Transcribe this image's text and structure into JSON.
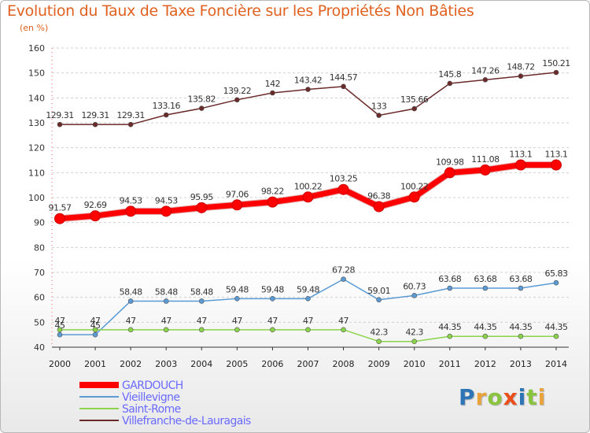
{
  "chart_data": {
    "type": "line",
    "title": "Evolution du Taux de Taxe Foncière sur les Propriétés Non Bâties",
    "ylabel": "(en %)",
    "xlabel": "",
    "ylim": [
      40,
      160
    ],
    "yticks": [
      40,
      50,
      60,
      70,
      80,
      90,
      100,
      110,
      120,
      130,
      140,
      150,
      160
    ],
    "categories": [
      "2000",
      "2001",
      "2002",
      "2003",
      "2004",
      "2005",
      "2006",
      "2007",
      "2008",
      "2009",
      "2010",
      "2011",
      "2012",
      "2013",
      "2014"
    ],
    "series": [
      {
        "name": "GARDOUCH",
        "color": "#ff0000",
        "values": [
          91.57,
          92.69,
          94.53,
          94.53,
          95.95,
          97.06,
          98.22,
          100.22,
          103.25,
          96.38,
          100.22,
          109.98,
          111.08,
          113.1,
          113.1
        ],
        "labels": [
          "91.57",
          "92.69",
          "94.53",
          "94.53",
          "95.95",
          "97.06",
          "98.22",
          "100.22",
          "103.25",
          "96.38",
          "100.22",
          "109.98",
          "111.08",
          "113.1",
          "113.1"
        ]
      },
      {
        "name": "Vieillevigne",
        "color": "#5b9bd5",
        "values": [
          45,
          45,
          58.48,
          58.48,
          58.48,
          59.48,
          59.48,
          59.48,
          67.28,
          59.01,
          60.73,
          63.68,
          63.68,
          63.68,
          65.83
        ],
        "labels": [
          "45",
          "45",
          "58.48",
          "58.48",
          "58.48",
          "59.48",
          "59.48",
          "59.48",
          "67.28",
          "59.01",
          "60.73",
          "63.68",
          "63.68",
          "63.68",
          "65.83"
        ]
      },
      {
        "name": "Saint-Rome",
        "color": "#8ad34a",
        "values": [
          47,
          47,
          47,
          47,
          47,
          47,
          47,
          47,
          47,
          42.3,
          42.3,
          44.35,
          44.35,
          44.35,
          44.35
        ],
        "labels": [
          "47",
          "47",
          "47",
          "47",
          "47",
          "47",
          "47",
          "47",
          "47",
          "42.3",
          "42.3",
          "44.35",
          "44.35",
          "44.35",
          "44.35"
        ]
      },
      {
        "name": "Villefranche-de-Lauragais",
        "color": "#6b2a2a",
        "values": [
          129.31,
          129.31,
          129.31,
          133.16,
          135.82,
          139.22,
          142,
          143.42,
          144.57,
          133,
          135.66,
          145.8,
          147.26,
          148.72,
          150.21
        ],
        "labels": [
          "129.31",
          "129.31",
          "129.31",
          "133.16",
          "135.82",
          "139.22",
          "142",
          "143.42",
          "144.57",
          "133",
          "135.66",
          "145.8",
          "147.26",
          "148.72",
          "150.21"
        ]
      }
    ]
  },
  "logo": {
    "text": "Proxiti",
    "colors": [
      "#2e75b6",
      "#e8a33d",
      "#8ac43f",
      "#e94e1b",
      "#2e75b6",
      "#8ac43f",
      "#e8a33d"
    ]
  }
}
